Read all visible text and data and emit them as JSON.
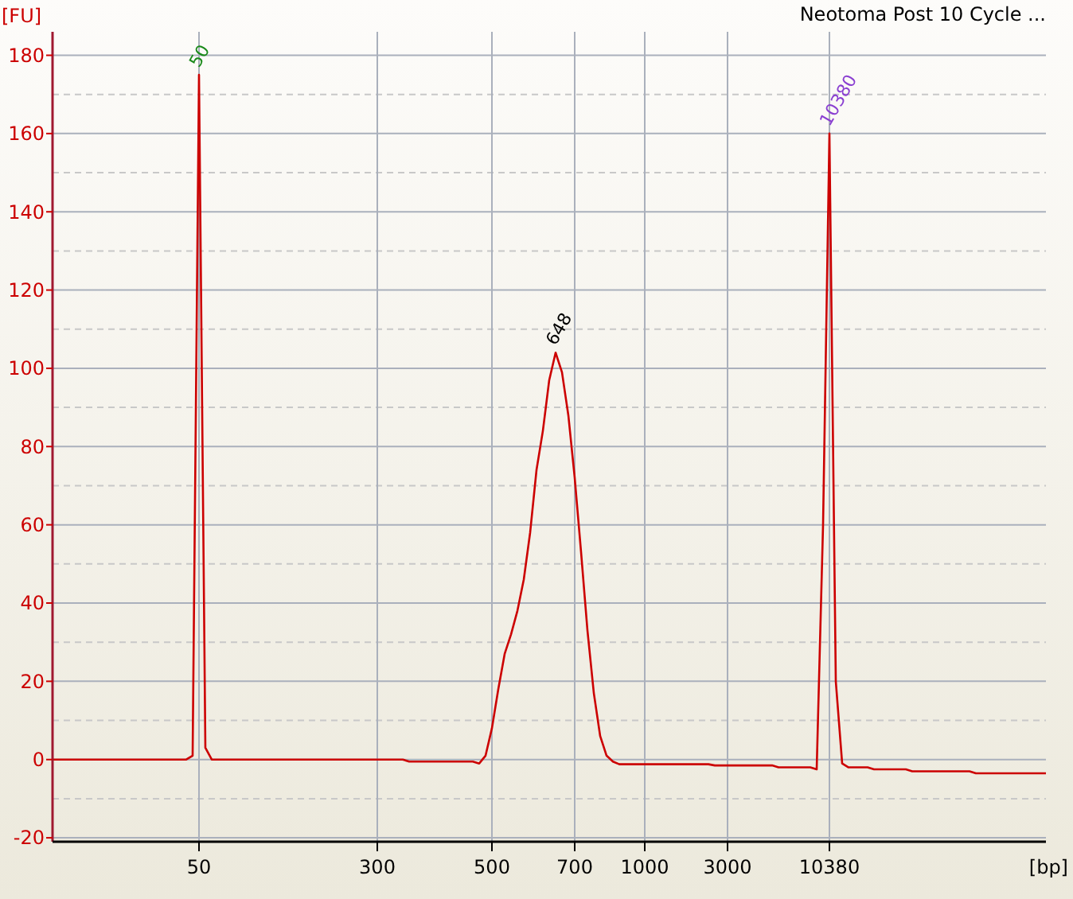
{
  "chart_data": {
    "type": "line",
    "title": "Neotoma Post 10 Cycle ...",
    "xlabel": "[bp]",
    "ylabel": "[FU]",
    "categories": [
      null,
      null,
      null,
      null,
      null,
      null,
      null,
      null,
      null,
      null,
      null,
      null,
      null,
      null,
      null,
      null,
      null,
      null,
      null,
      null,
      null,
      null,
      null,
      "50",
      null,
      null,
      null,
      null,
      null,
      null,
      null,
      null,
      null,
      null,
      null,
      null,
      null,
      null,
      null,
      null,
      null,
      null,
      null,
      null,
      null,
      null,
      null,
      null,
      null,
      null,
      null,
      "300",
      null,
      null,
      null,
      null,
      null,
      null,
      null,
      null,
      null,
      null,
      null,
      null,
      null,
      null,
      null,
      null,
      null,
      "500",
      null,
      null,
      null,
      null,
      null,
      null,
      null,
      null,
      null,
      null,
      null,
      null,
      "700",
      null,
      null,
      null,
      null,
      null,
      null,
      null,
      null,
      null,
      null,
      "1000",
      null,
      null,
      null,
      null,
      null,
      null,
      null,
      null,
      null,
      null,
      null,
      null,
      "3000",
      null,
      null,
      null,
      null,
      null,
      null,
      null,
      null,
      null,
      null,
      null,
      null,
      null,
      null,
      null,
      "10380",
      null,
      null,
      null,
      null,
      null,
      null,
      null,
      null,
      null,
      null,
      null,
      null,
      null,
      null,
      null,
      null,
      null,
      null,
      null,
      null,
      null,
      null,
      null,
      null,
      null,
      null,
      null,
      null,
      null,
      null,
      null,
      null,
      null,
      null
    ],
    "series": [
      {
        "color": "#cc0000",
        "values": [
          0,
          0,
          0,
          0,
          0,
          0,
          0,
          0,
          0,
          0,
          0,
          0,
          0,
          0,
          0,
          0,
          0,
          0,
          0,
          0,
          0,
          0,
          1,
          175,
          3,
          0,
          0,
          0,
          0,
          0,
          0,
          0,
          0,
          0,
          0,
          0,
          0,
          0,
          0,
          0,
          0,
          0,
          0,
          0,
          0,
          0,
          0,
          0,
          0,
          0,
          0,
          0,
          0,
          0,
          0,
          0,
          -0.5,
          -0.5,
          -0.5,
          -0.5,
          -0.5,
          -0.5,
          -0.5,
          -0.5,
          -0.5,
          -0.5,
          -0.5,
          -1,
          1,
          8,
          18,
          27,
          32,
          38,
          46,
          58,
          74,
          84,
          97,
          104,
          99,
          88,
          72,
          53,
          33,
          17,
          6,
          1,
          -0.5,
          -1.2,
          -1.2,
          -1.2,
          -1.2,
          -1.2,
          -1.2,
          -1.2,
          -1.2,
          -1.2,
          -1.2,
          -1.2,
          -1.2,
          -1.2,
          -1.2,
          -1.2,
          -1.5,
          -1.5,
          -1.5,
          -1.5,
          -1.5,
          -1.5,
          -1.5,
          -1.5,
          -1.5,
          -1.5,
          -2,
          -2,
          -2,
          -2,
          -2,
          -2,
          -2.5,
          60,
          160,
          20,
          -1,
          -2,
          -2,
          -2,
          -2,
          -2.5,
          -2.5,
          -2.5,
          -2.5,
          -2.5,
          -2.5,
          -3,
          -3,
          -3,
          -3,
          -3,
          -3,
          -3,
          -3,
          -3,
          -3,
          -3.5,
          -3.5,
          -3.5,
          -3.5,
          -3.5,
          -3.5,
          -3.5,
          -3.5,
          -3.5,
          -3.5,
          -3.5,
          -3.5
        ]
      }
    ],
    "annotations": [
      "50",
      "648",
      "10380"
    ],
    "ylim": [
      -21,
      186
    ],
    "yticks": [
      -20,
      0,
      20,
      40,
      60,
      80,
      100,
      120,
      140,
      160,
      180
    ],
    "grid": true,
    "marker": "none",
    "line_style": "solid"
  }
}
